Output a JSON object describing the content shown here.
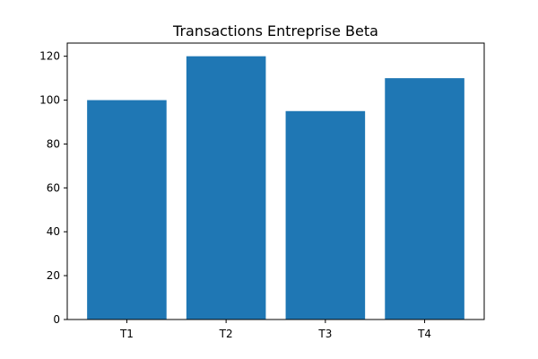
{
  "chart_data": {
    "type": "bar",
    "title": "Transactions Entreprise Beta",
    "xlabel": "",
    "ylabel": "",
    "categories": [
      "T1",
      "T2",
      "T3",
      "T4"
    ],
    "values": [
      100,
      120,
      95,
      110
    ],
    "ylim": [
      0,
      126
    ],
    "yticks": [
      0,
      20,
      40,
      60,
      80,
      100,
      120
    ],
    "bar_color": "#1f77b4",
    "grid": false,
    "legend": "none"
  }
}
